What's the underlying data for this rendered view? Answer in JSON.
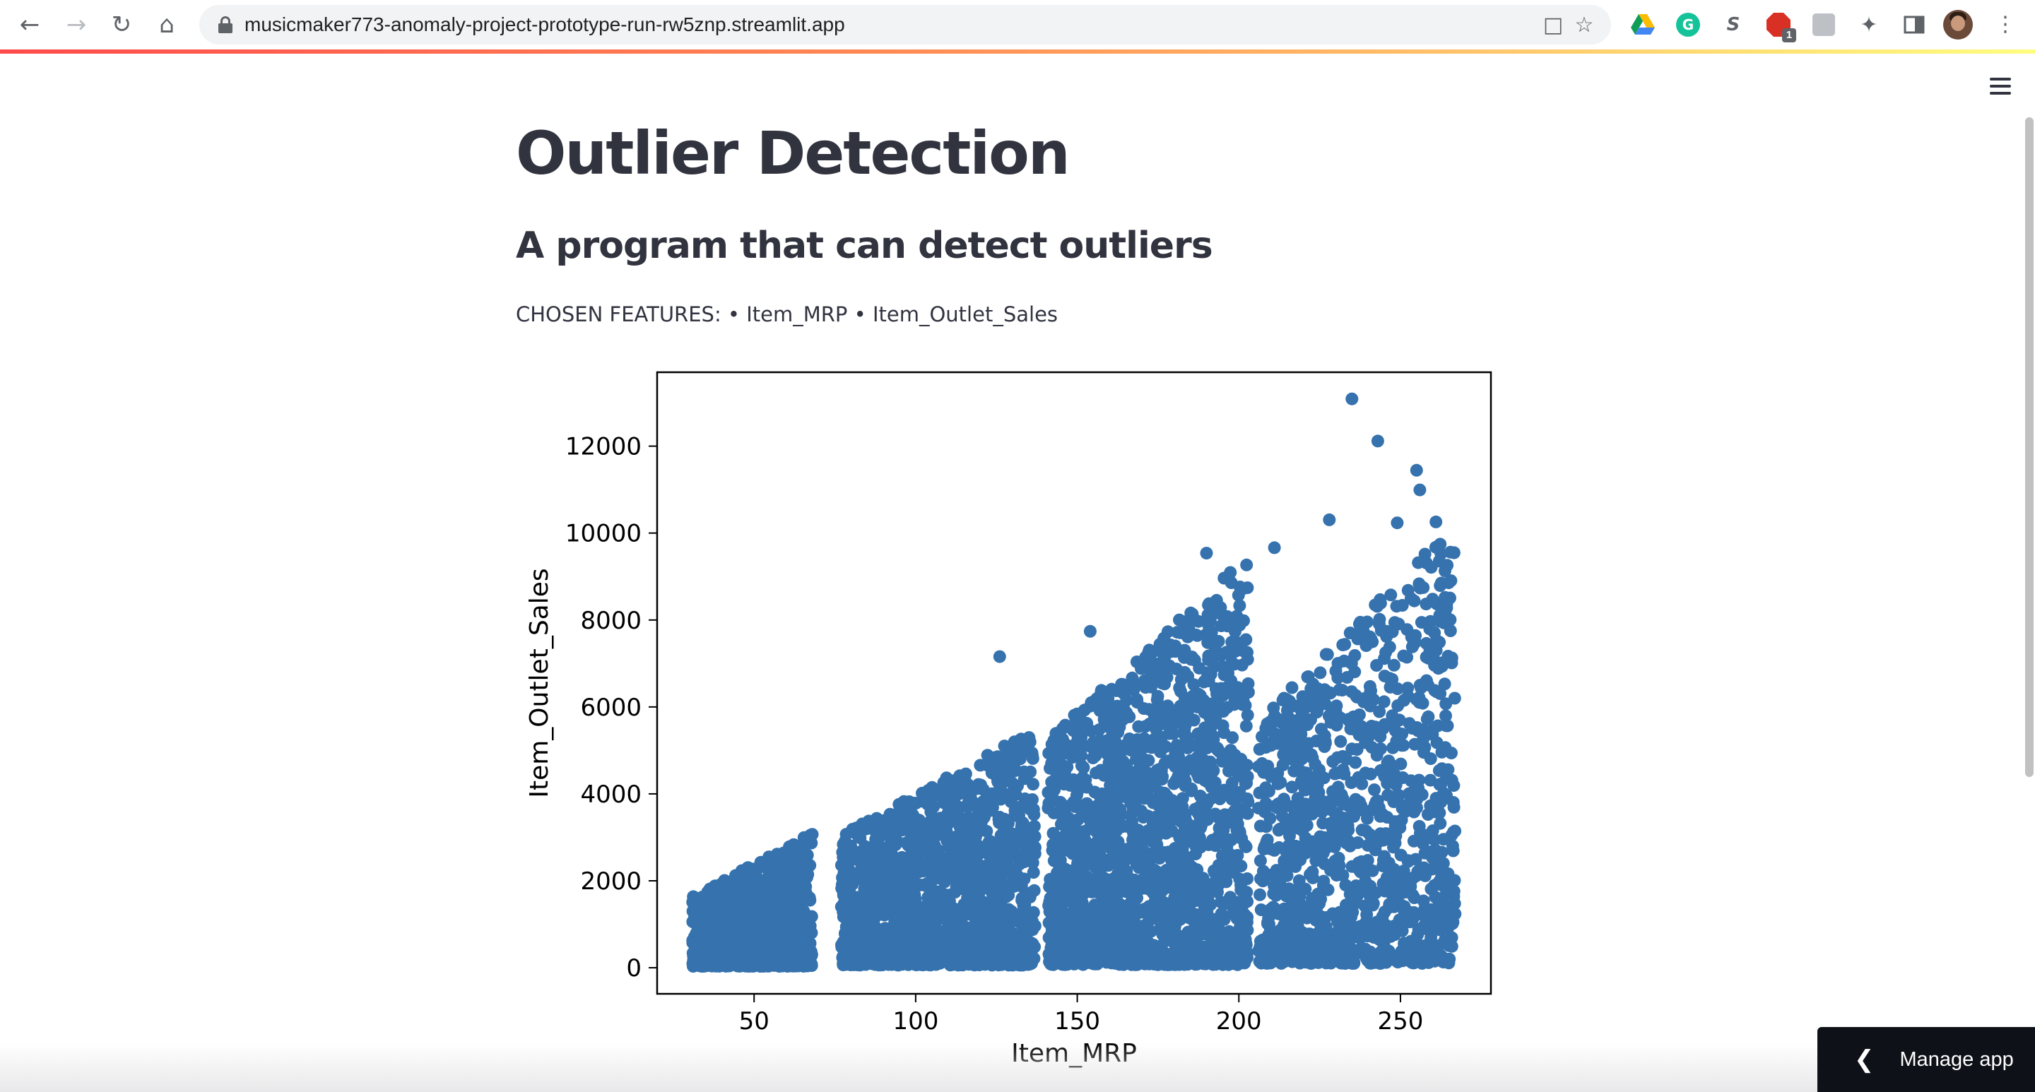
{
  "browser": {
    "url": "musicmaker773-anomaly-project-prototype-run-rw5znp.streamlit.app",
    "extension_badge": "1"
  },
  "page": {
    "title": "Outlier Detection",
    "subtitle": "A program that can detect outliers",
    "features_text": "CHOSEN FEATURES: • Item_MRP • Item_Outlet_Sales"
  },
  "manage_app": {
    "label": "Manage app"
  },
  "colors": {
    "point": "#3572ae",
    "accent": "#ff4b4b"
  },
  "chart_data": {
    "type": "scatter",
    "xlabel": "Item_MRP",
    "ylabel": "Item_Outlet_Sales",
    "xlim": [
      20,
      278
    ],
    "ylim": [
      -600,
      13700
    ],
    "xticks": [
      50,
      100,
      150,
      200,
      250
    ],
    "yticks": [
      0,
      2000,
      4000,
      6000,
      8000,
      10000,
      12000
    ],
    "grid": false,
    "clusters": [
      {
        "x_range": [
          31,
          68
        ],
        "y_range": [
          33,
          3100
        ]
      },
      {
        "x_range": [
          77,
          137
        ],
        "y_range": [
          60,
          5500
        ]
      },
      {
        "x_range": [
          141,
          203
        ],
        "y_range": [
          70,
          9500
        ]
      },
      {
        "x_range": [
          206,
          267
        ],
        "y_range": [
          100,
          10300
        ]
      }
    ],
    "notable_points": [
      {
        "x": 235,
        "y": 13087
      },
      {
        "x": 243,
        "y": 12117
      },
      {
        "x": 255,
        "y": 11445
      },
      {
        "x": 256,
        "y": 10993
      },
      {
        "x": 261,
        "y": 10256
      },
      {
        "x": 228,
        "y": 10306
      },
      {
        "x": 249,
        "y": 10236
      },
      {
        "x": 126,
        "y": 7158
      },
      {
        "x": 190,
        "y": 9539
      },
      {
        "x": 211,
        "y": 9664
      },
      {
        "x": 154,
        "y": 7740
      }
    ]
  }
}
